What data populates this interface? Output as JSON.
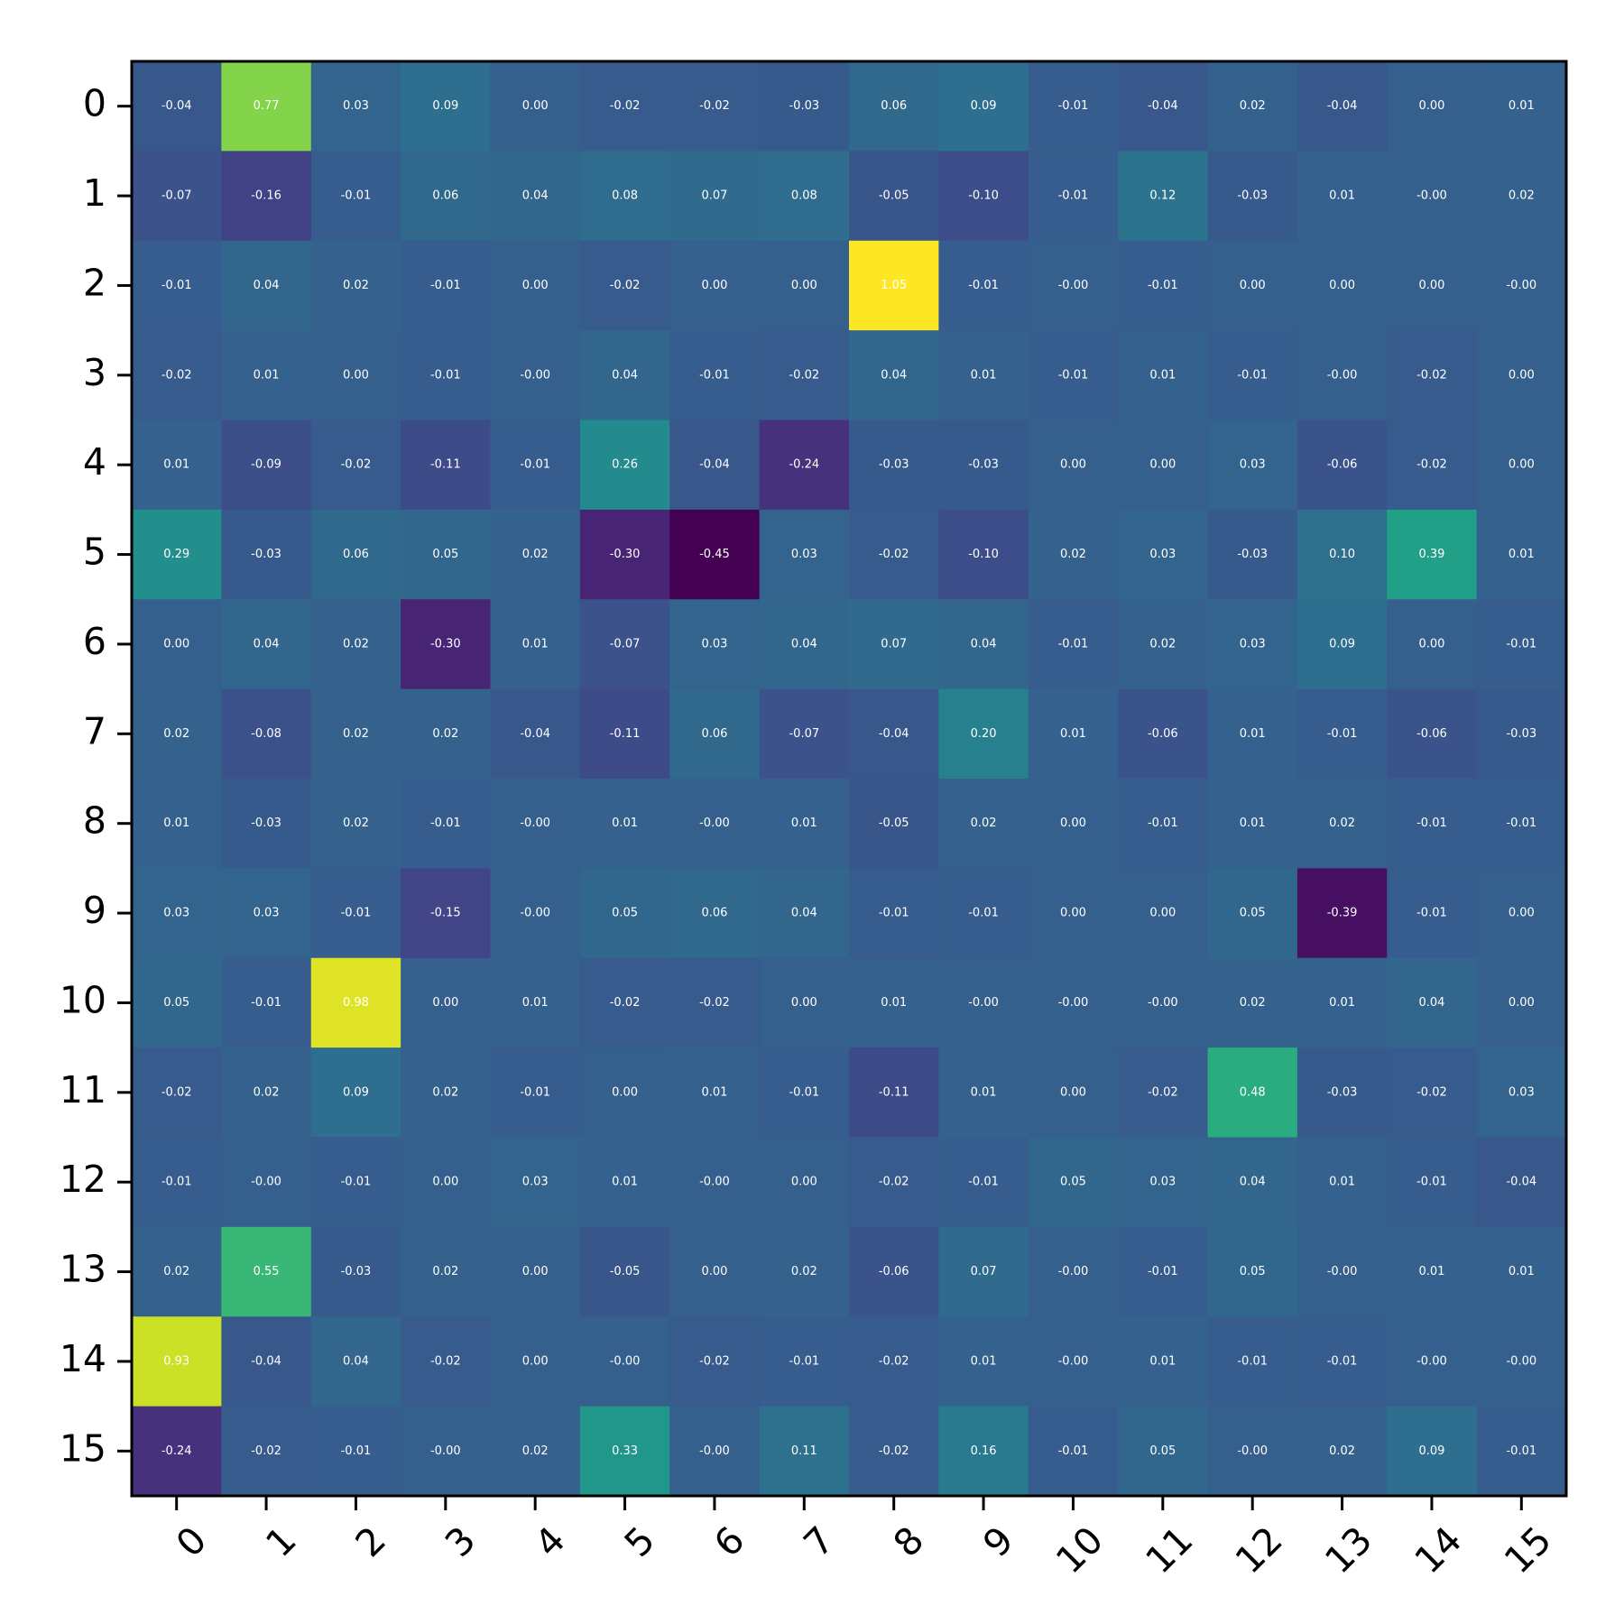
{
  "chart_data": {
    "type": "heatmap",
    "title": "",
    "xlabel": "",
    "ylabel": "",
    "x_categories": [
      "0",
      "1",
      "2",
      "3",
      "4",
      "5",
      "6",
      "7",
      "8",
      "9",
      "10",
      "11",
      "12",
      "13",
      "14",
      "15"
    ],
    "y_categories": [
      "0",
      "1",
      "2",
      "3",
      "4",
      "5",
      "6",
      "7",
      "8",
      "9",
      "10",
      "11",
      "12",
      "13",
      "14",
      "15"
    ],
    "colormap": "viridis",
    "color_range": [
      -0.45,
      1.05
    ],
    "grid": false,
    "x_tick_rotation_deg": 45,
    "values": [
      [
        -0.04,
        0.77,
        0.03,
        0.09,
        0.0,
        -0.02,
        -0.02,
        -0.03,
        0.06,
        0.09,
        -0.01,
        -0.04,
        0.02,
        -0.04,
        0.0,
        0.01
      ],
      [
        -0.07,
        -0.16,
        -0.01,
        0.06,
        0.04,
        0.08,
        0.07,
        0.08,
        -0.05,
        -0.1,
        -0.01,
        0.12,
        -0.03,
        0.01,
        -0.0,
        0.02
      ],
      [
        -0.01,
        0.04,
        0.02,
        -0.01,
        0.0,
        -0.02,
        0.0,
        0.0,
        1.05,
        -0.01,
        -0.0,
        -0.01,
        0.0,
        0.0,
        0.0,
        -0.0
      ],
      [
        -0.02,
        0.01,
        0.0,
        -0.01,
        -0.0,
        0.04,
        -0.01,
        -0.02,
        0.04,
        0.01,
        -0.01,
        0.01,
        -0.01,
        -0.0,
        -0.02,
        0.0
      ],
      [
        0.01,
        -0.09,
        -0.02,
        -0.11,
        -0.01,
        0.26,
        -0.04,
        -0.24,
        -0.03,
        -0.03,
        0.0,
        0.0,
        0.03,
        -0.06,
        -0.02,
        0.0
      ],
      [
        0.29,
        -0.03,
        0.06,
        0.05,
        0.02,
        -0.3,
        -0.45,
        0.03,
        -0.02,
        -0.1,
        0.02,
        0.03,
        -0.03,
        0.1,
        0.39,
        0.01
      ],
      [
        0.0,
        0.04,
        0.02,
        -0.3,
        0.01,
        -0.07,
        0.03,
        0.04,
        0.07,
        0.04,
        -0.01,
        0.02,
        0.03,
        0.09,
        0.0,
        -0.01
      ],
      [
        0.02,
        -0.08,
        0.02,
        0.02,
        -0.04,
        -0.11,
        0.06,
        -0.07,
        -0.04,
        0.2,
        0.01,
        -0.06,
        0.01,
        -0.01,
        -0.06,
        -0.03
      ],
      [
        0.01,
        -0.03,
        0.02,
        -0.01,
        -0.0,
        0.01,
        -0.0,
        0.01,
        -0.05,
        0.02,
        0.0,
        -0.01,
        0.01,
        0.02,
        -0.01,
        -0.01
      ],
      [
        0.03,
        0.03,
        -0.01,
        -0.15,
        -0.0,
        0.05,
        0.06,
        0.04,
        -0.01,
        -0.01,
        0.0,
        0.0,
        0.05,
        -0.39,
        -0.01,
        0.0
      ],
      [
        0.05,
        -0.01,
        0.98,
        0.0,
        0.01,
        -0.02,
        -0.02,
        0.0,
        0.01,
        -0.0,
        -0.0,
        -0.0,
        0.02,
        0.01,
        0.04,
        0.0
      ],
      [
        -0.02,
        0.02,
        0.09,
        0.02,
        -0.01,
        0.0,
        0.01,
        -0.01,
        -0.11,
        0.01,
        0.0,
        -0.02,
        0.48,
        -0.03,
        -0.02,
        0.03
      ],
      [
        -0.01,
        -0.0,
        -0.01,
        0.0,
        0.03,
        0.01,
        -0.0,
        0.0,
        -0.02,
        -0.01,
        0.05,
        0.03,
        0.04,
        0.01,
        -0.01,
        -0.04
      ],
      [
        0.02,
        0.55,
        -0.03,
        0.02,
        0.0,
        -0.05,
        0.0,
        0.02,
        -0.06,
        0.07,
        -0.0,
        -0.01,
        0.05,
        -0.0,
        0.01,
        0.01
      ],
      [
        0.93,
        -0.04,
        0.04,
        -0.02,
        0.0,
        -0.0,
        -0.02,
        -0.01,
        -0.02,
        0.01,
        -0.0,
        0.01,
        -0.01,
        -0.01,
        -0.0,
        -0.0
      ],
      [
        -0.24,
        -0.02,
        -0.01,
        -0.0,
        0.02,
        0.33,
        -0.0,
        0.11,
        -0.02,
        0.16,
        -0.01,
        0.05,
        -0.0,
        0.02,
        0.09,
        -0.01
      ]
    ],
    "cell_labels": [
      [
        "-0.04",
        "0.77",
        "0.03",
        "0.09",
        "0.00",
        "-0.02",
        "-0.02",
        "-0.03",
        "0.06",
        "0.09",
        "-0.01",
        "-0.04",
        "0.02",
        "-0.04",
        "0.00",
        "0.01"
      ],
      [
        "-0.07",
        "-0.16",
        "-0.01",
        "0.06",
        "0.04",
        "0.08",
        "0.07",
        "0.08",
        "-0.05",
        "-0.10",
        "-0.01",
        "0.12",
        "-0.03",
        "0.01",
        "-0.00",
        "0.02"
      ],
      [
        "-0.01",
        "0.04",
        "0.02",
        "-0.01",
        "0.00",
        "-0.02",
        "0.00",
        "0.00",
        "1.05",
        "-0.01",
        "-0.00",
        "-0.01",
        "0.00",
        "0.00",
        "0.00",
        "-0.00"
      ],
      [
        "-0.02",
        "0.01",
        "0.00",
        "-0.01",
        "-0.00",
        "0.04",
        "-0.01",
        "-0.02",
        "0.04",
        "0.01",
        "-0.01",
        "0.01",
        "-0.01",
        "-0.00",
        "-0.02",
        "0.00"
      ],
      [
        "0.01",
        "-0.09",
        "-0.02",
        "-0.11",
        "-0.01",
        "0.26",
        "-0.04",
        "-0.24",
        "-0.03",
        "-0.03",
        "0.00",
        "0.00",
        "0.03",
        "-0.06",
        "-0.02",
        "0.00"
      ],
      [
        "0.29",
        "-0.03",
        "0.06",
        "0.05",
        "0.02",
        "-0.30",
        "-0.45",
        "0.03",
        "-0.02",
        "-0.10",
        "0.02",
        "0.03",
        "-0.03",
        "0.10",
        "0.39",
        "0.01"
      ],
      [
        "0.00",
        "0.04",
        "0.02",
        "-0.30",
        "0.01",
        "-0.07",
        "0.03",
        "0.04",
        "0.07",
        "0.04",
        "-0.01",
        "0.02",
        "0.03",
        "0.09",
        "0.00",
        "-0.01"
      ],
      [
        "0.02",
        "-0.08",
        "0.02",
        "0.02",
        "-0.04",
        "-0.11",
        "0.06",
        "-0.07",
        "-0.04",
        "0.20",
        "0.01",
        "-0.06",
        "0.01",
        "-0.01",
        "-0.06",
        "-0.03"
      ],
      [
        "0.01",
        "-0.03",
        "0.02",
        "-0.01",
        "-0.00",
        "0.01",
        "-0.00",
        "0.01",
        "-0.05",
        "0.02",
        "0.00",
        "-0.01",
        "0.01",
        "0.02",
        "-0.01",
        "-0.01"
      ],
      [
        "0.03",
        "0.03",
        "-0.01",
        "-0.15",
        "-0.00",
        "0.05",
        "0.06",
        "0.04",
        "-0.01",
        "-0.01",
        "0.00",
        "0.00",
        "0.05",
        "-0.39",
        "-0.01",
        "0.00"
      ],
      [
        "0.05",
        "-0.01",
        "0.98",
        "0.00",
        "0.01",
        "-0.02",
        "-0.02",
        "0.00",
        "0.01",
        "-0.00",
        "-0.00",
        "-0.00",
        "0.02",
        "0.01",
        "0.04",
        "0.00"
      ],
      [
        "-0.02",
        "0.02",
        "0.09",
        "0.02",
        "-0.01",
        "0.00",
        "0.01",
        "-0.01",
        "-0.11",
        "0.01",
        "0.00",
        "-0.02",
        "0.48",
        "-0.03",
        "-0.02",
        "0.03"
      ],
      [
        "-0.01",
        "-0.00",
        "-0.01",
        "0.00",
        "0.03",
        "0.01",
        "-0.00",
        "0.00",
        "-0.02",
        "-0.01",
        "0.05",
        "0.03",
        "0.04",
        "0.01",
        "-0.01",
        "-0.04"
      ],
      [
        "0.02",
        "0.55",
        "-0.03",
        "0.02",
        "0.00",
        "-0.05",
        "0.00",
        "0.02",
        "-0.06",
        "0.07",
        "-0.00",
        "-0.01",
        "0.05",
        "-0.00",
        "0.01",
        "0.01"
      ],
      [
        "0.93",
        "-0.04",
        "0.04",
        "-0.02",
        "0.00",
        "-0.00",
        "-0.02",
        "-0.01",
        "-0.02",
        "0.01",
        "-0.00",
        "0.01",
        "-0.01",
        "-0.01",
        "-0.00",
        "-0.00"
      ],
      [
        "-0.24",
        "-0.02",
        "-0.01",
        "-0.00",
        "0.02",
        "0.33",
        "-0.00",
        "0.11",
        "-0.02",
        "0.16",
        "-0.01",
        "0.05",
        "-0.00",
        "0.02",
        "0.09",
        "-0.01"
      ]
    ]
  }
}
